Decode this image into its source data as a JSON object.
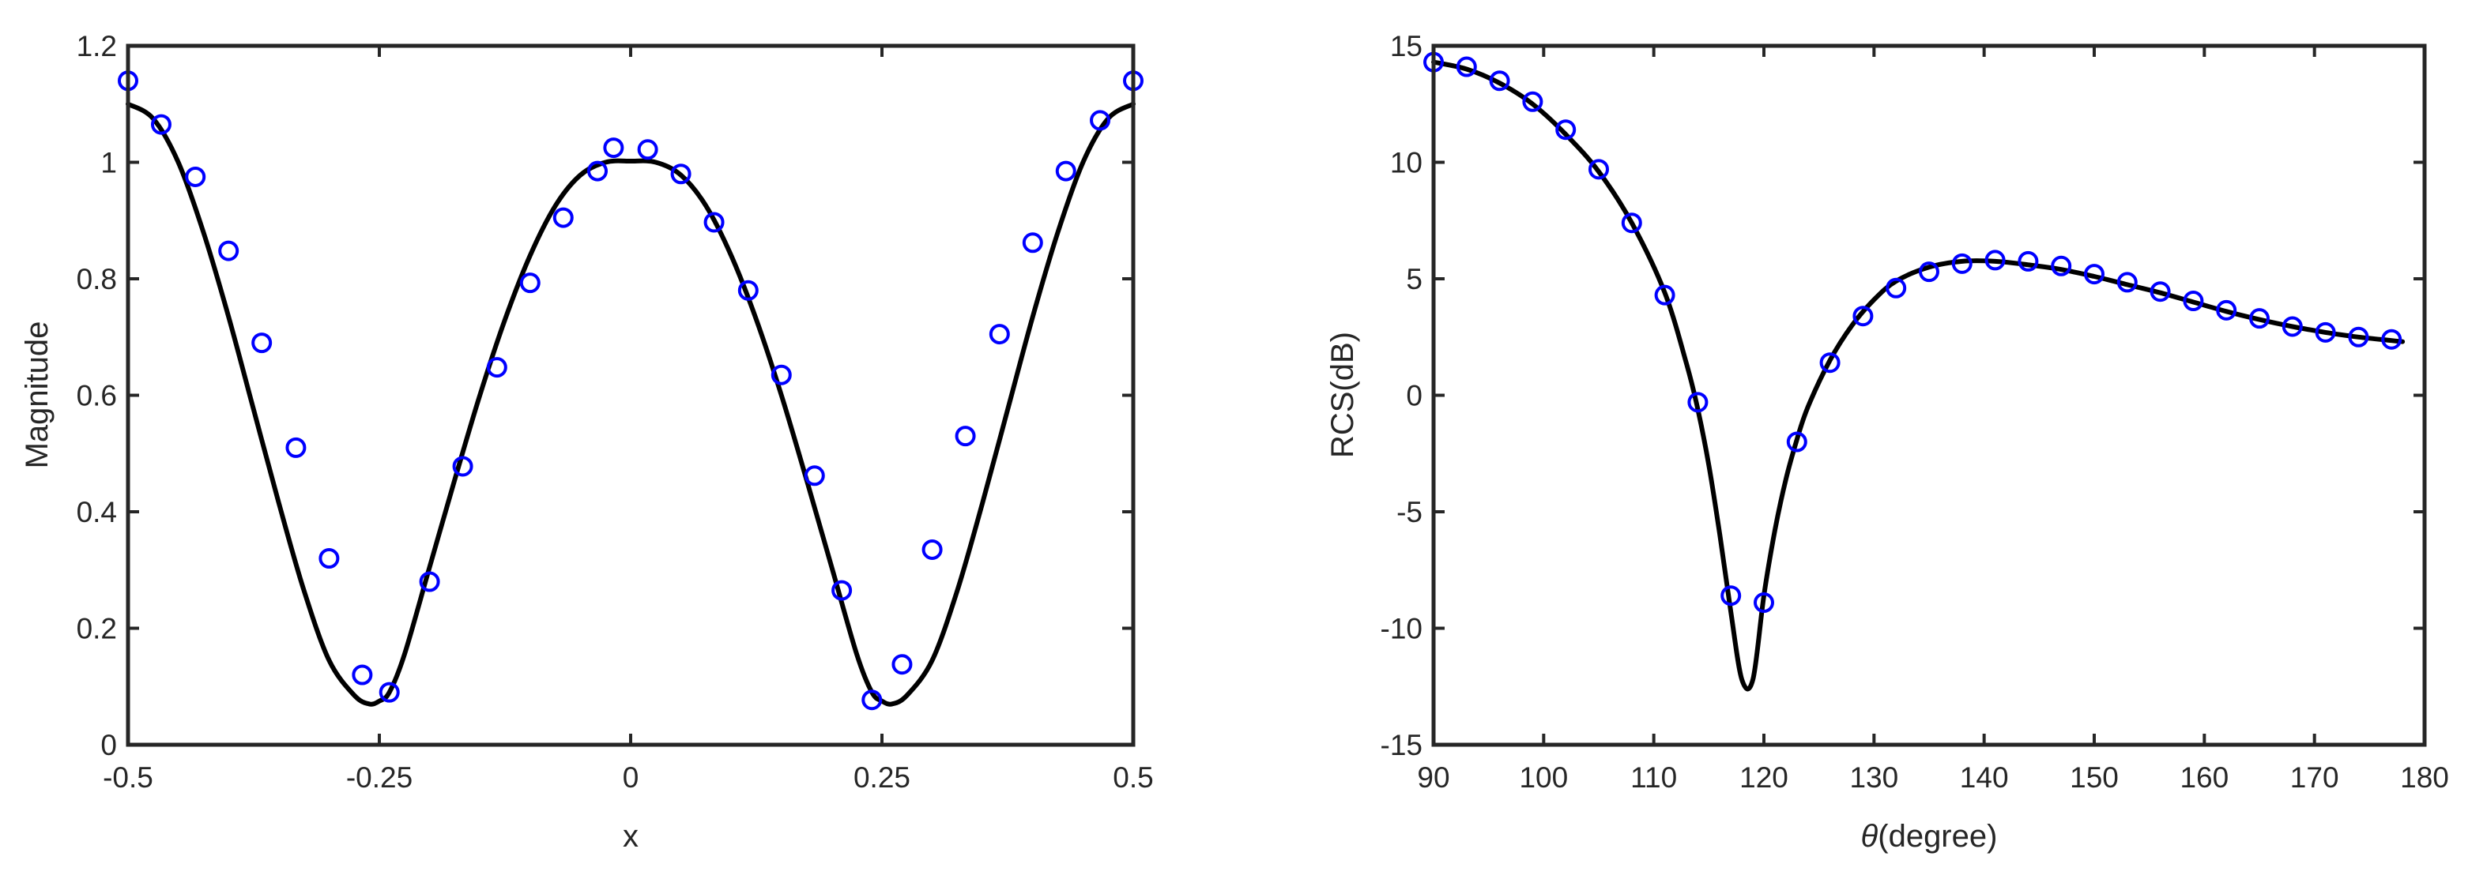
{
  "chart_data": [
    {
      "type": "line",
      "xlabel": "x",
      "ylabel": "Magnitude",
      "xlim": [
        -0.5,
        0.5
      ],
      "ylim": [
        0,
        1.2
      ],
      "xticks": [
        -0.5,
        -0.25,
        0,
        0.25,
        0.5
      ],
      "xtick_labels": [
        "-0.5",
        "-0.25",
        "0",
        "0.25",
        "0.5"
      ],
      "yticks": [
        0,
        0.2,
        0.4,
        0.6,
        0.8,
        1,
        1.2
      ],
      "ytick_labels": [
        "0",
        "0.2",
        "0.4",
        "0.6",
        "0.8",
        "1",
        "1.2"
      ],
      "grid": false,
      "legend": "none",
      "series": [
        {
          "style": "solid line",
          "color": "#000000",
          "x": [
            -0.5,
            -0.475,
            -0.45,
            -0.425,
            -0.4,
            -0.375,
            -0.35,
            -0.325,
            -0.3,
            -0.275,
            -0.26,
            -0.25,
            -0.24,
            -0.225,
            -0.2,
            -0.175,
            -0.15,
            -0.125,
            -0.1,
            -0.075,
            -0.05,
            -0.025,
            0,
            0.025,
            0.05,
            0.075,
            0.1,
            0.125,
            0.15,
            0.175,
            0.2,
            0.225,
            0.24,
            0.25,
            0.26,
            0.275,
            0.3,
            0.325,
            0.35,
            0.375,
            0.4,
            0.425,
            0.45,
            0.475,
            0.5
          ],
          "y": [
            1.1,
            1.075,
            1.0,
            0.88,
            0.735,
            0.575,
            0.415,
            0.265,
            0.145,
            0.085,
            0.07,
            0.075,
            0.09,
            0.155,
            0.305,
            0.455,
            0.6,
            0.73,
            0.84,
            0.925,
            0.978,
            1.0,
            1.002,
            1.0,
            0.978,
            0.925,
            0.84,
            0.73,
            0.6,
            0.455,
            0.305,
            0.155,
            0.09,
            0.075,
            0.07,
            0.085,
            0.145,
            0.265,
            0.415,
            0.575,
            0.735,
            0.88,
            1.0,
            1.075,
            1.1
          ]
        },
        {
          "style": "circles",
          "color": "#0000ff",
          "x": [
            -0.5,
            -0.467,
            -0.433,
            -0.4,
            -0.367,
            -0.333,
            -0.3,
            -0.267,
            -0.24,
            -0.2,
            -0.167,
            -0.133,
            -0.1,
            -0.067,
            -0.033,
            -0.017,
            0.017,
            0.05,
            0.083,
            0.117,
            0.15,
            0.183,
            0.21,
            0.24,
            0.27,
            0.3,
            0.333,
            0.367,
            0.4,
            0.433,
            0.467,
            0.5
          ],
          "y": [
            1.14,
            1.065,
            0.975,
            0.848,
            0.69,
            0.51,
            0.32,
            0.12,
            0.09,
            0.28,
            0.478,
            0.648,
            0.793,
            0.905,
            0.985,
            1.025,
            1.022,
            0.98,
            0.897,
            0.78,
            0.635,
            0.462,
            0.265,
            0.077,
            0.138,
            0.335,
            0.53,
            0.705,
            0.862,
            0.985,
            1.072,
            1.14
          ]
        }
      ]
    },
    {
      "type": "line",
      "xlabel": "θ(degree)",
      "ylabel": "RCS(dB)",
      "xlim": [
        90,
        180
      ],
      "ylim": [
        -15,
        15
      ],
      "xticks": [
        90,
        100,
        110,
        120,
        130,
        140,
        150,
        160,
        170,
        180
      ],
      "xtick_labels": [
        "90",
        "100",
        "110",
        "120",
        "130",
        "140",
        "150",
        "160",
        "170",
        "180"
      ],
      "yticks": [
        -15,
        -10,
        -5,
        0,
        5,
        10,
        15
      ],
      "ytick_labels": [
        "-15",
        "-10",
        "-5",
        "0",
        "5",
        "10",
        "15"
      ],
      "grid": false,
      "legend": "none",
      "series": [
        {
          "style": "solid line",
          "color": "#000000",
          "x": [
            90,
            93,
            96,
            99,
            102,
            105,
            108,
            111,
            113,
            114,
            115,
            116,
            117,
            118,
            119,
            120,
            121,
            122,
            123,
            124,
            126,
            128,
            130,
            132,
            135,
            138,
            141,
            144,
            147,
            150,
            153,
            156,
            159,
            162,
            165,
            168,
            171,
            174,
            177,
            178
          ],
          "y": [
            14.3,
            14.0,
            13.4,
            12.5,
            11.2,
            9.6,
            7.4,
            4.4,
            1.3,
            -0.6,
            -3.0,
            -6.0,
            -9.3,
            -12.2,
            -12.2,
            -8.6,
            -5.8,
            -3.6,
            -1.9,
            -0.5,
            1.5,
            3.0,
            4.1,
            4.9,
            5.5,
            5.75,
            5.75,
            5.6,
            5.4,
            5.1,
            4.75,
            4.4,
            4.0,
            3.6,
            3.25,
            2.95,
            2.7,
            2.5,
            2.35,
            2.3
          ]
        },
        {
          "style": "circles",
          "color": "#0000ff",
          "x": [
            90,
            93,
            96,
            99,
            102,
            105,
            108,
            111,
            114,
            117,
            120,
            123,
            126,
            129,
            132,
            135,
            138,
            141,
            144,
            147,
            150,
            153,
            156,
            159,
            162,
            165,
            168,
            171,
            174,
            177
          ],
          "y": [
            14.3,
            14.1,
            13.5,
            12.6,
            11.4,
            9.7,
            7.4,
            4.3,
            -0.3,
            -8.6,
            -8.9,
            -2.0,
            1.4,
            3.4,
            4.6,
            5.3,
            5.65,
            5.8,
            5.75,
            5.55,
            5.2,
            4.85,
            4.45,
            4.05,
            3.65,
            3.3,
            2.95,
            2.7,
            2.5,
            2.4
          ]
        }
      ]
    }
  ]
}
